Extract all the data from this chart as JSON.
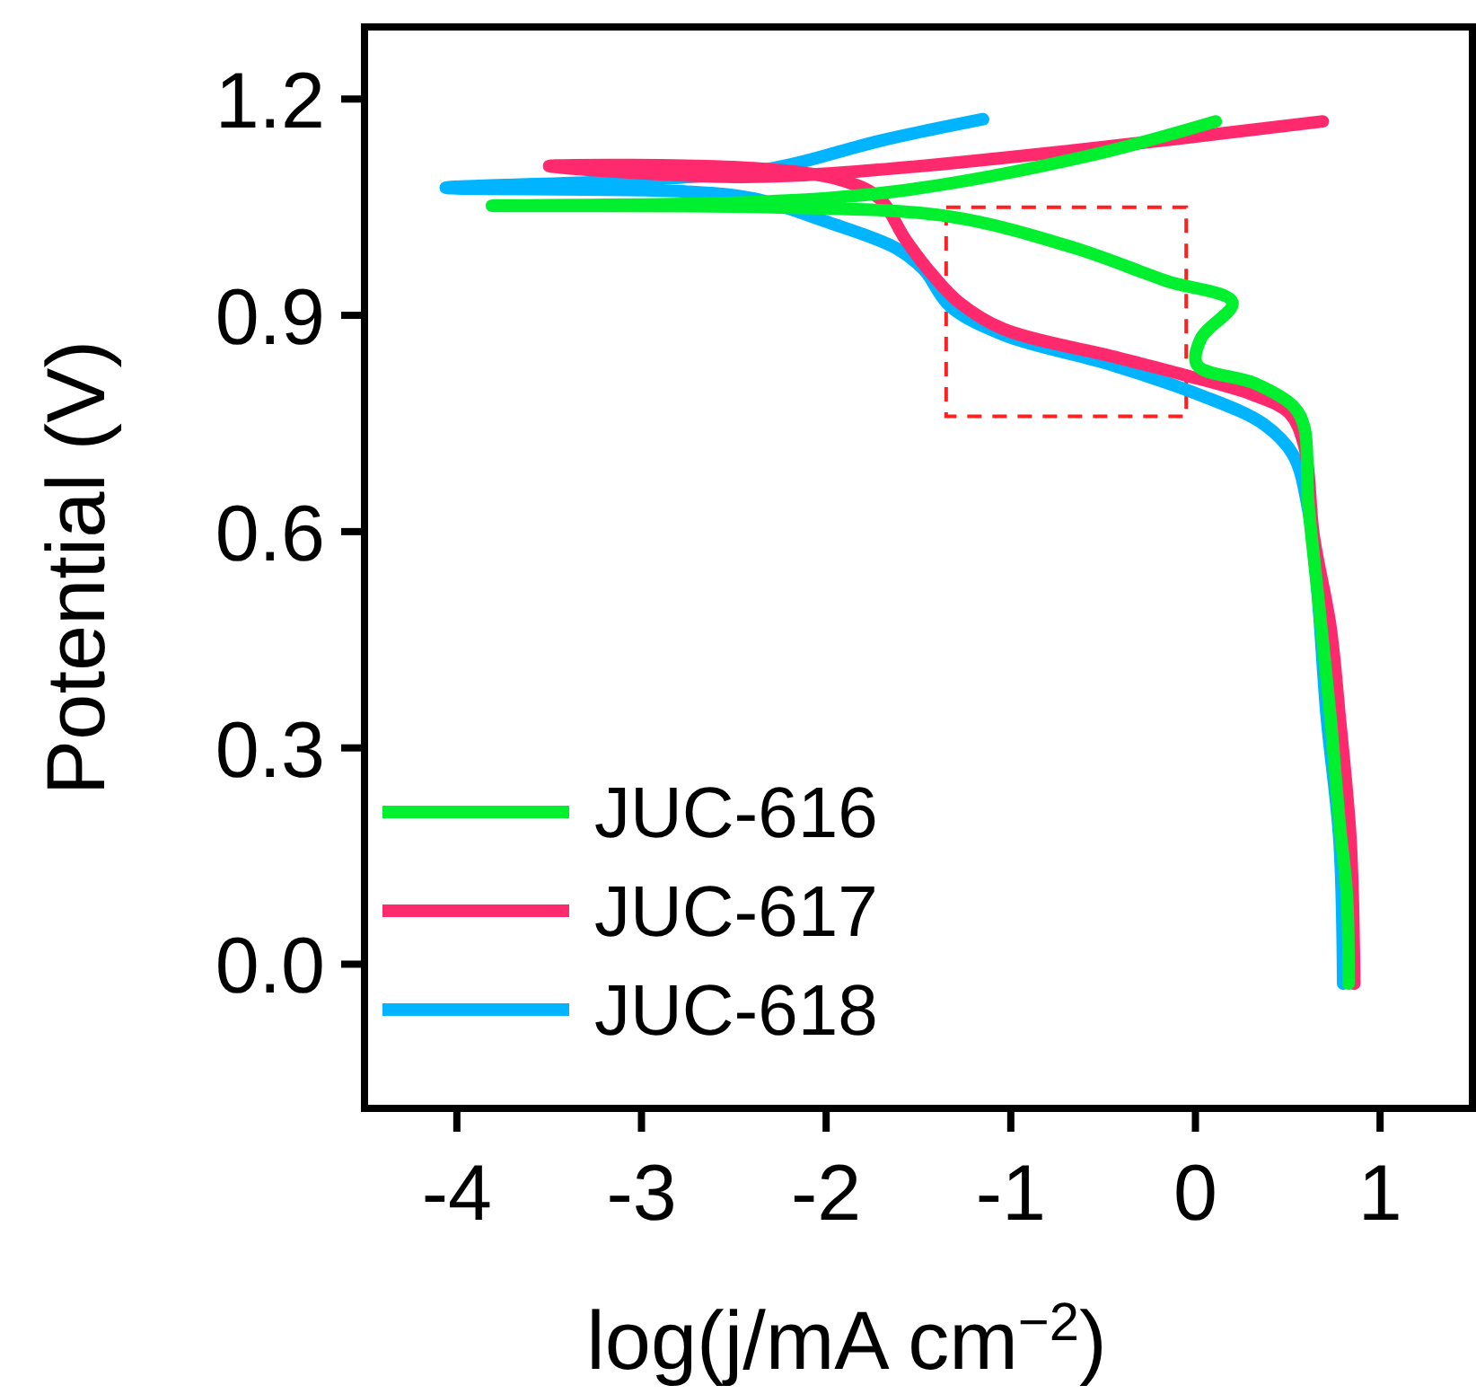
{
  "chart_data": {
    "type": "line",
    "xlabel": "log(j/mA cm$^{−2}$)",
    "ylabel": "Potential (V)",
    "xlim": [
      -4.5,
      1.5
    ],
    "xticks": [
      -4,
      -3,
      -2,
      -1,
      0,
      1
    ],
    "ylim": [
      -0.2,
      1.3
    ],
    "yticks": [
      {
        "value": 0,
        "label": "0.0"
      },
      0.3,
      0.6,
      0.9,
      1.2
    ],
    "grid": false,
    "legend": "bottom left",
    "marker": "none",
    "line_style": "solid",
    "series": [
      {
        "name": "JUC-616",
        "color": "#00f030",
        "x": [
          0.11,
          -0.6,
          -1.62,
          -2.39,
          -3.81,
          -2.29,
          -1.33,
          -0.65,
          -0.16,
          0.2,
          0.03,
          0.01,
          0.32,
          0.53,
          0.59,
          0.61,
          0.66,
          0.73,
          0.78,
          0.82,
          0.83
        ],
        "values": [
          1.169,
          1.12,
          1.072,
          1.057,
          1.052,
          1.05,
          1.037,
          0.993,
          0.948,
          0.918,
          0.868,
          0.831,
          0.806,
          0.774,
          0.744,
          0.644,
          0.52,
          0.346,
          0.197,
          0.097,
          -0.027
        ]
      },
      {
        "name": "JUC-617",
        "color": "#ff2a6e",
        "x": [
          0.69,
          -0.65,
          -1.81,
          -2.49,
          -3.5,
          -2.39,
          -1.91,
          -1.71,
          -1.57,
          -1.42,
          -1.28,
          -1.04,
          -0.45,
          -0.07,
          0.32,
          0.51,
          0.59,
          0.64,
          0.73,
          0.78,
          0.84,
          0.86
        ],
        "values": [
          1.169,
          1.129,
          1.1,
          1.092,
          1.107,
          1.104,
          1.087,
          1.062,
          1.005,
          0.955,
          0.918,
          0.881,
          0.843,
          0.818,
          0.789,
          0.764,
          0.719,
          0.595,
          0.47,
          0.346,
          0.172,
          -0.027
        ]
      },
      {
        "name": "JUC-618",
        "color": "#00b4ff",
        "x": [
          -1.15,
          -1.71,
          -2.29,
          -3.07,
          -4.06,
          -2.78,
          -2.39,
          -2.0,
          -1.62,
          -1.47,
          -1.33,
          -1.04,
          -0.45,
          0.03,
          0.37,
          0.53,
          0.61,
          0.66,
          0.71,
          0.78,
          0.8
        ],
        "values": [
          1.172,
          1.142,
          1.104,
          1.087,
          1.077,
          1.072,
          1.062,
          1.03,
          0.993,
          0.963,
          0.913,
          0.873,
          0.831,
          0.789,
          0.749,
          0.706,
          0.632,
          0.52,
          0.346,
          0.172,
          -0.027
        ]
      }
    ]
  }
}
